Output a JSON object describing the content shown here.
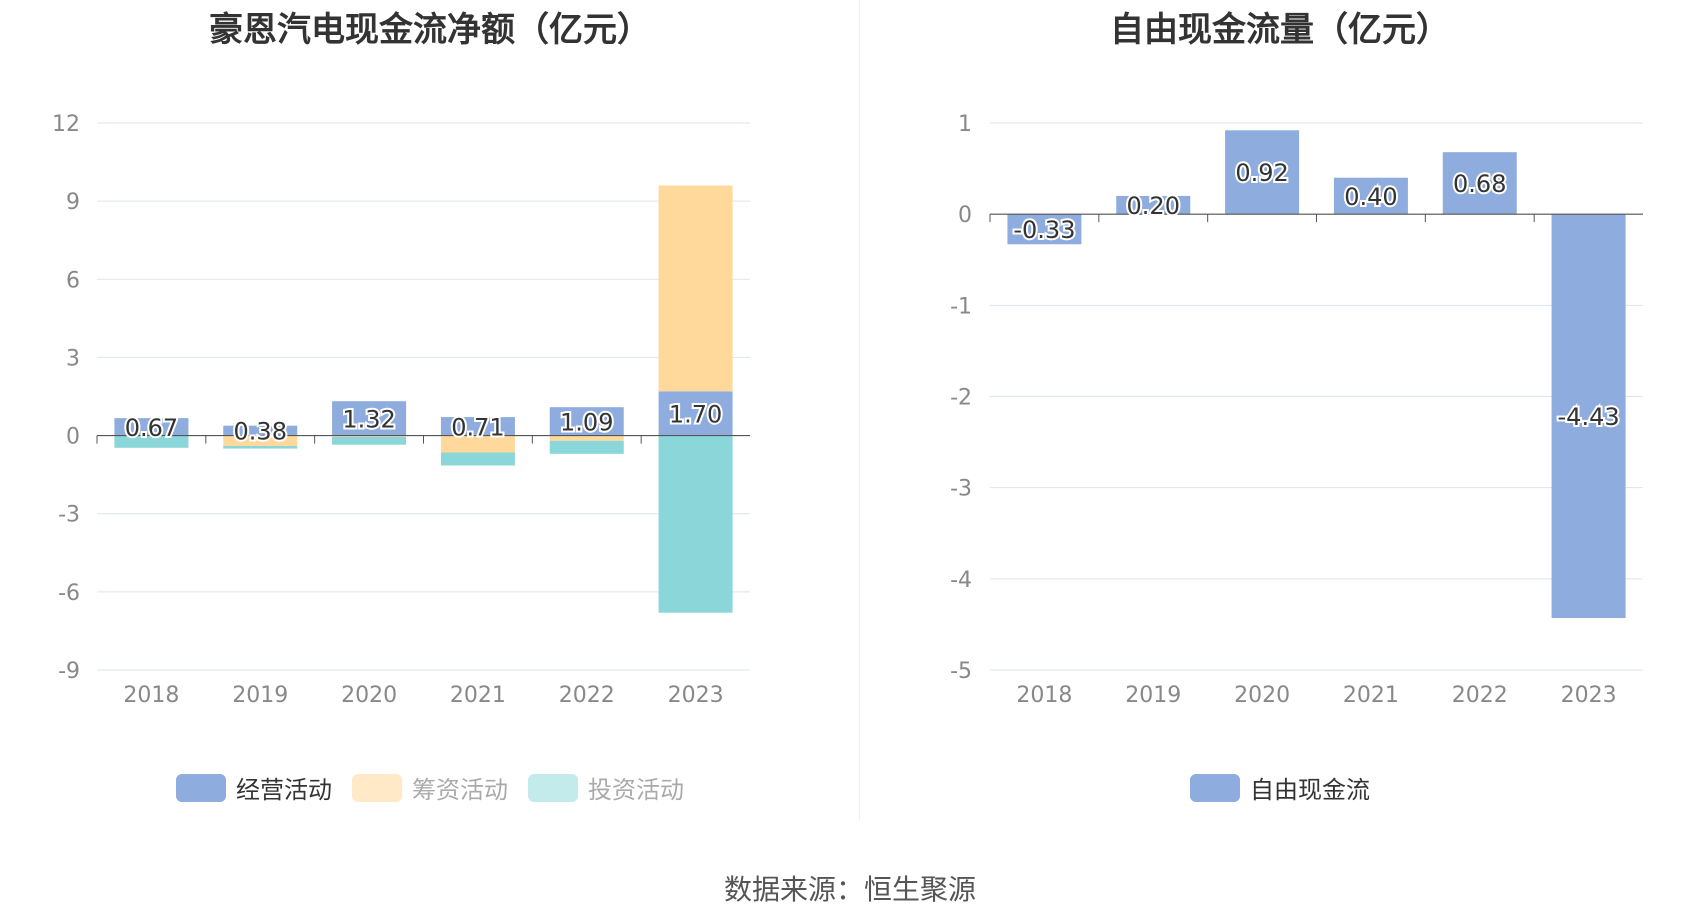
{
  "colors": {
    "operating": "#8eadde",
    "financing": "#ffd89c",
    "investing": "#8ad6d9",
    "fcf": "#8eadde",
    "grid": "#dde3ef",
    "axis_text": "#888888",
    "label_text": "#333333"
  },
  "chart_data": [
    {
      "type": "bar",
      "stacked": true,
      "title": "豪恩汽电现金流净额（亿元）",
      "categories": [
        "2018",
        "2019",
        "2020",
        "2021",
        "2022",
        "2023"
      ],
      "ylim": [
        -9,
        12
      ],
      "yticks": [
        12,
        9,
        6,
        3,
        0,
        -3,
        -6,
        -9
      ],
      "grid": true,
      "legend_position": "bottom",
      "series": [
        {
          "name": "经营活动",
          "values": [
            0.67,
            0.38,
            1.32,
            0.71,
            1.09,
            1.7
          ],
          "labels": [
            "0.67",
            "0.38",
            "1.32",
            "0.71",
            "1.09",
            "1.70"
          ]
        },
        {
          "name": "筹资活动",
          "values": [
            0.0,
            -0.4,
            -0.05,
            -0.65,
            -0.2,
            7.9
          ]
        },
        {
          "name": "投资活动",
          "values": [
            -0.47,
            -0.1,
            -0.3,
            -0.5,
            -0.5,
            -6.8
          ]
        }
      ]
    },
    {
      "type": "bar",
      "title": "自由现金流量（亿元）",
      "categories": [
        "2018",
        "2019",
        "2020",
        "2021",
        "2022",
        "2023"
      ],
      "ylim": [
        -5,
        1
      ],
      "yticks": [
        1,
        0,
        -1,
        -2,
        -3,
        -4,
        -5
      ],
      "grid": true,
      "legend_position": "bottom",
      "series": [
        {
          "name": "自由现金流",
          "values": [
            -0.33,
            0.2,
            0.92,
            0.4,
            0.68,
            -4.43
          ],
          "labels": [
            "-0.33",
            "0.20",
            "0.92",
            "0.40",
            "0.68",
            "-4.43"
          ]
        }
      ]
    }
  ],
  "legend_left": [
    "经营活动",
    "筹资活动",
    "投资活动"
  ],
  "legend_right": [
    "自由现金流"
  ],
  "source": "数据来源：恒生聚源"
}
